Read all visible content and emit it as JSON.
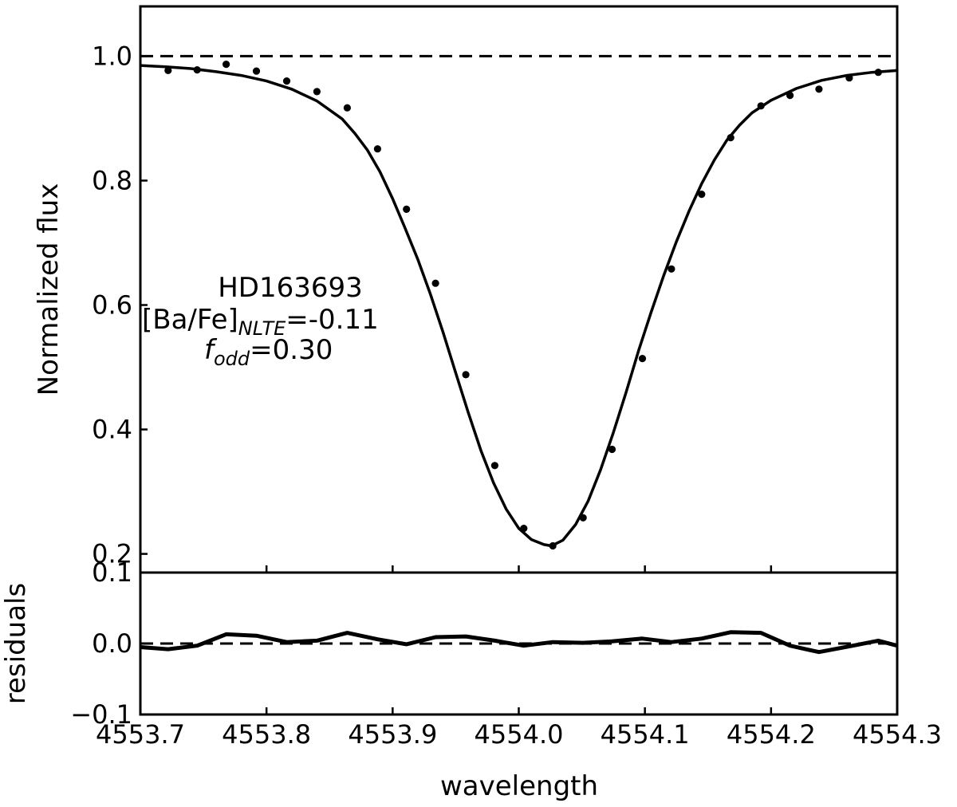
{
  "chart_data": [
    {
      "panel": "spectrum",
      "type": "line",
      "xlim": [
        4553.7,
        4554.3
      ],
      "ylim": [
        0.17,
        1.08
      ],
      "ylabel": "Normalized flux",
      "yticks": [
        "0.2",
        "0.4",
        "0.6",
        "0.8",
        "1.0"
      ],
      "yticks_values": [
        0.2,
        0.4,
        0.6,
        0.8,
        1.0
      ],
      "continuum_level": 1.0,
      "annotation": {
        "star": "HD163693",
        "abundance_prefix": "[Ba/Fe]",
        "abundance_sub": "NLTE",
        "abundance_value": "=-0.11",
        "fodd_main": "f",
        "fodd_sub": "odd",
        "fodd_value": "=0.30"
      },
      "series": [
        {
          "kind": "model",
          "x": [
            4553.7,
            4553.72,
            4553.74,
            4553.76,
            4553.78,
            4553.8,
            4553.82,
            4553.84,
            4553.86,
            4553.87,
            4553.88,
            4553.89,
            4553.9,
            4553.91,
            4553.92,
            4553.93,
            4553.94,
            4553.95,
            4553.96,
            4553.97,
            4553.98,
            4553.99,
            4554.0,
            4554.01,
            4554.02,
            4554.026,
            4554.035,
            4554.045,
            4554.055,
            4554.065,
            4554.075,
            4554.085,
            4554.095,
            4554.105,
            4554.115,
            4554.125,
            4554.135,
            4554.145,
            4554.155,
            4554.165,
            4554.175,
            4554.185,
            4554.2,
            4554.22,
            4554.24,
            4554.26,
            4554.28,
            4554.3
          ],
          "y": [
            0.985,
            0.983,
            0.98,
            0.975,
            0.969,
            0.96,
            0.947,
            0.928,
            0.899,
            0.876,
            0.849,
            0.814,
            0.771,
            0.723,
            0.673,
            0.617,
            0.556,
            0.491,
            0.427,
            0.366,
            0.314,
            0.272,
            0.241,
            0.223,
            0.215,
            0.213,
            0.222,
            0.247,
            0.285,
            0.336,
            0.395,
            0.459,
            0.527,
            0.589,
            0.648,
            0.702,
            0.751,
            0.795,
            0.833,
            0.865,
            0.889,
            0.909,
            0.929,
            0.948,
            0.961,
            0.969,
            0.974,
            0.977
          ]
        },
        {
          "kind": "observed",
          "x": [
            4553.722,
            4553.745,
            4553.768,
            4553.792,
            4553.816,
            4553.84,
            4553.864,
            4553.888,
            4553.911,
            4553.934,
            4553.958,
            4553.981,
            4554.004,
            4554.027,
            4554.051,
            4554.074,
            4554.098,
            4554.121,
            4554.145,
            4554.168,
            4554.192,
            4554.215,
            4554.238,
            4554.262,
            4554.285
          ],
          "y": [
            0.977,
            0.978,
            0.987,
            0.976,
            0.96,
            0.943,
            0.917,
            0.851,
            0.754,
            0.635,
            0.488,
            0.342,
            0.241,
            0.213,
            0.258,
            0.368,
            0.514,
            0.658,
            0.778,
            0.869,
            0.92,
            0.937,
            0.947,
            0.965,
            0.974
          ]
        }
      ]
    },
    {
      "panel": "residuals",
      "type": "line",
      "xlabel": "wavelength",
      "ylabel": "residuals",
      "xlim": [
        4553.7,
        4554.3
      ],
      "ylim": [
        -0.1,
        0.1
      ],
      "xticks": [
        "4553.7",
        "4553.8",
        "4553.9",
        "4554.0",
        "4554.1",
        "4554.2",
        "4554.3"
      ],
      "xticks_values": [
        4553.7,
        4553.8,
        4553.9,
        4554.0,
        4554.1,
        4554.2,
        4554.3
      ],
      "yticks": [
        "−0.1",
        "0.0",
        "0.1"
      ],
      "yticks_values": [
        -0.1,
        0.0,
        0.1
      ],
      "zero_level": 0.0,
      "series": [
        {
          "kind": "residual",
          "x": [
            4553.7,
            4553.722,
            4553.745,
            4553.768,
            4553.792,
            4553.816,
            4553.84,
            4553.864,
            4553.888,
            4553.911,
            4553.934,
            4553.958,
            4553.981,
            4554.004,
            4554.027,
            4554.051,
            4554.074,
            4554.098,
            4554.121,
            4554.145,
            4554.168,
            4554.192,
            4554.215,
            4554.238,
            4554.262,
            4554.285,
            4554.3
          ],
          "y": [
            -0.005,
            -0.008,
            -0.003,
            0.013,
            0.011,
            0.002,
            0.004,
            0.015,
            0.006,
            -0.001,
            0.009,
            0.01,
            0.004,
            -0.003,
            0.002,
            0.001,
            0.003,
            0.007,
            0.002,
            0.007,
            0.016,
            0.015,
            -0.003,
            -0.012,
            -0.004,
            0.004,
            -0.003
          ]
        }
      ]
    }
  ]
}
